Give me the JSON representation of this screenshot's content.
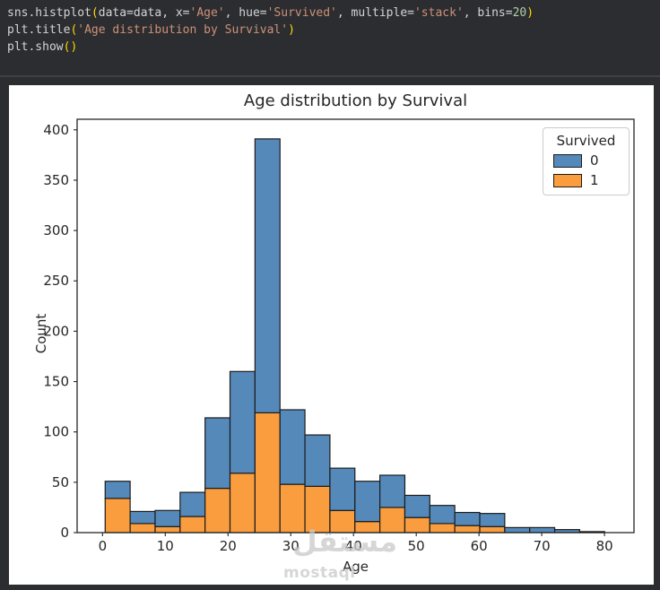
{
  "editor": {
    "colors": {
      "background": "#2b2d30",
      "identifier": "#d4d4d4",
      "paren": "#ffd700",
      "string": "#ce9178",
      "number": "#b5cea8"
    },
    "lines": [
      {
        "segs": [
          {
            "t": "sns.histplot"
          },
          {
            "t": "("
          },
          {
            "t": "data=data, x="
          },
          {
            "t": "'Age'"
          },
          {
            "t": ", hue="
          },
          {
            "t": "'Survived'"
          },
          {
            "t": ", multiple="
          },
          {
            "t": "'stack'"
          },
          {
            "t": ", bins="
          },
          {
            "t": "20"
          },
          {
            "t": ")"
          }
        ]
      },
      {
        "segs": [
          {
            "t": "plt.title"
          },
          {
            "t": "("
          },
          {
            "t": "'Age distribution by Survival'"
          },
          {
            "t": ")"
          }
        ]
      },
      {
        "segs": [
          {
            "t": "plt.show"
          },
          {
            "t": "()"
          }
        ]
      }
    ]
  },
  "watermark": {
    "arabic": "مستقل",
    "latin": "mostaql"
  },
  "chart_data": {
    "type": "bar",
    "subtype": "stacked-histogram",
    "title": "Age distribution by Survival",
    "xlabel": "Age",
    "ylabel": "Count",
    "grid": false,
    "legend_position": "upper right",
    "legend": {
      "title": "Survived",
      "entries": [
        {
          "label": "0",
          "color": "#5489ba"
        },
        {
          "label": "1",
          "color": "#fa9d3e"
        }
      ]
    },
    "background": "#ffffff",
    "text_color": "#262626",
    "bar_edge_color": "#1c1c1c",
    "bins": 20,
    "bin_start": 0.42,
    "bin_width": 3.98,
    "x_ticks": [
      0,
      10,
      20,
      30,
      40,
      50,
      60,
      70,
      80
    ],
    "y_ticks": [
      0,
      50,
      100,
      150,
      200,
      250,
      300,
      350,
      400
    ],
    "xlim": [
      -4.05,
      84.7
    ],
    "ylim": [
      0,
      410.5
    ],
    "categories_note": "age bins of width ~4 from 0.4 to 80",
    "series": [
      {
        "name": "0",
        "color": "#5489ba",
        "values": [
          17,
          12,
          16,
          24,
          70,
          101,
          272,
          74,
          51,
          42,
          40,
          32,
          22,
          18,
          13,
          13,
          5,
          5,
          3,
          1
        ]
      },
      {
        "name": "1",
        "color": "#fa9d3e",
        "values": [
          34,
          9,
          6,
          16,
          44,
          59,
          119,
          48,
          46,
          22,
          11,
          25,
          15,
          9,
          7,
          6,
          0,
          0,
          0,
          0
        ]
      }
    ],
    "totals": [
      51,
      21,
      22,
      40,
      114,
      160,
      391,
      122,
      97,
      64,
      51,
      57,
      37,
      27,
      20,
      19,
      5,
      5,
      3,
      1
    ]
  }
}
